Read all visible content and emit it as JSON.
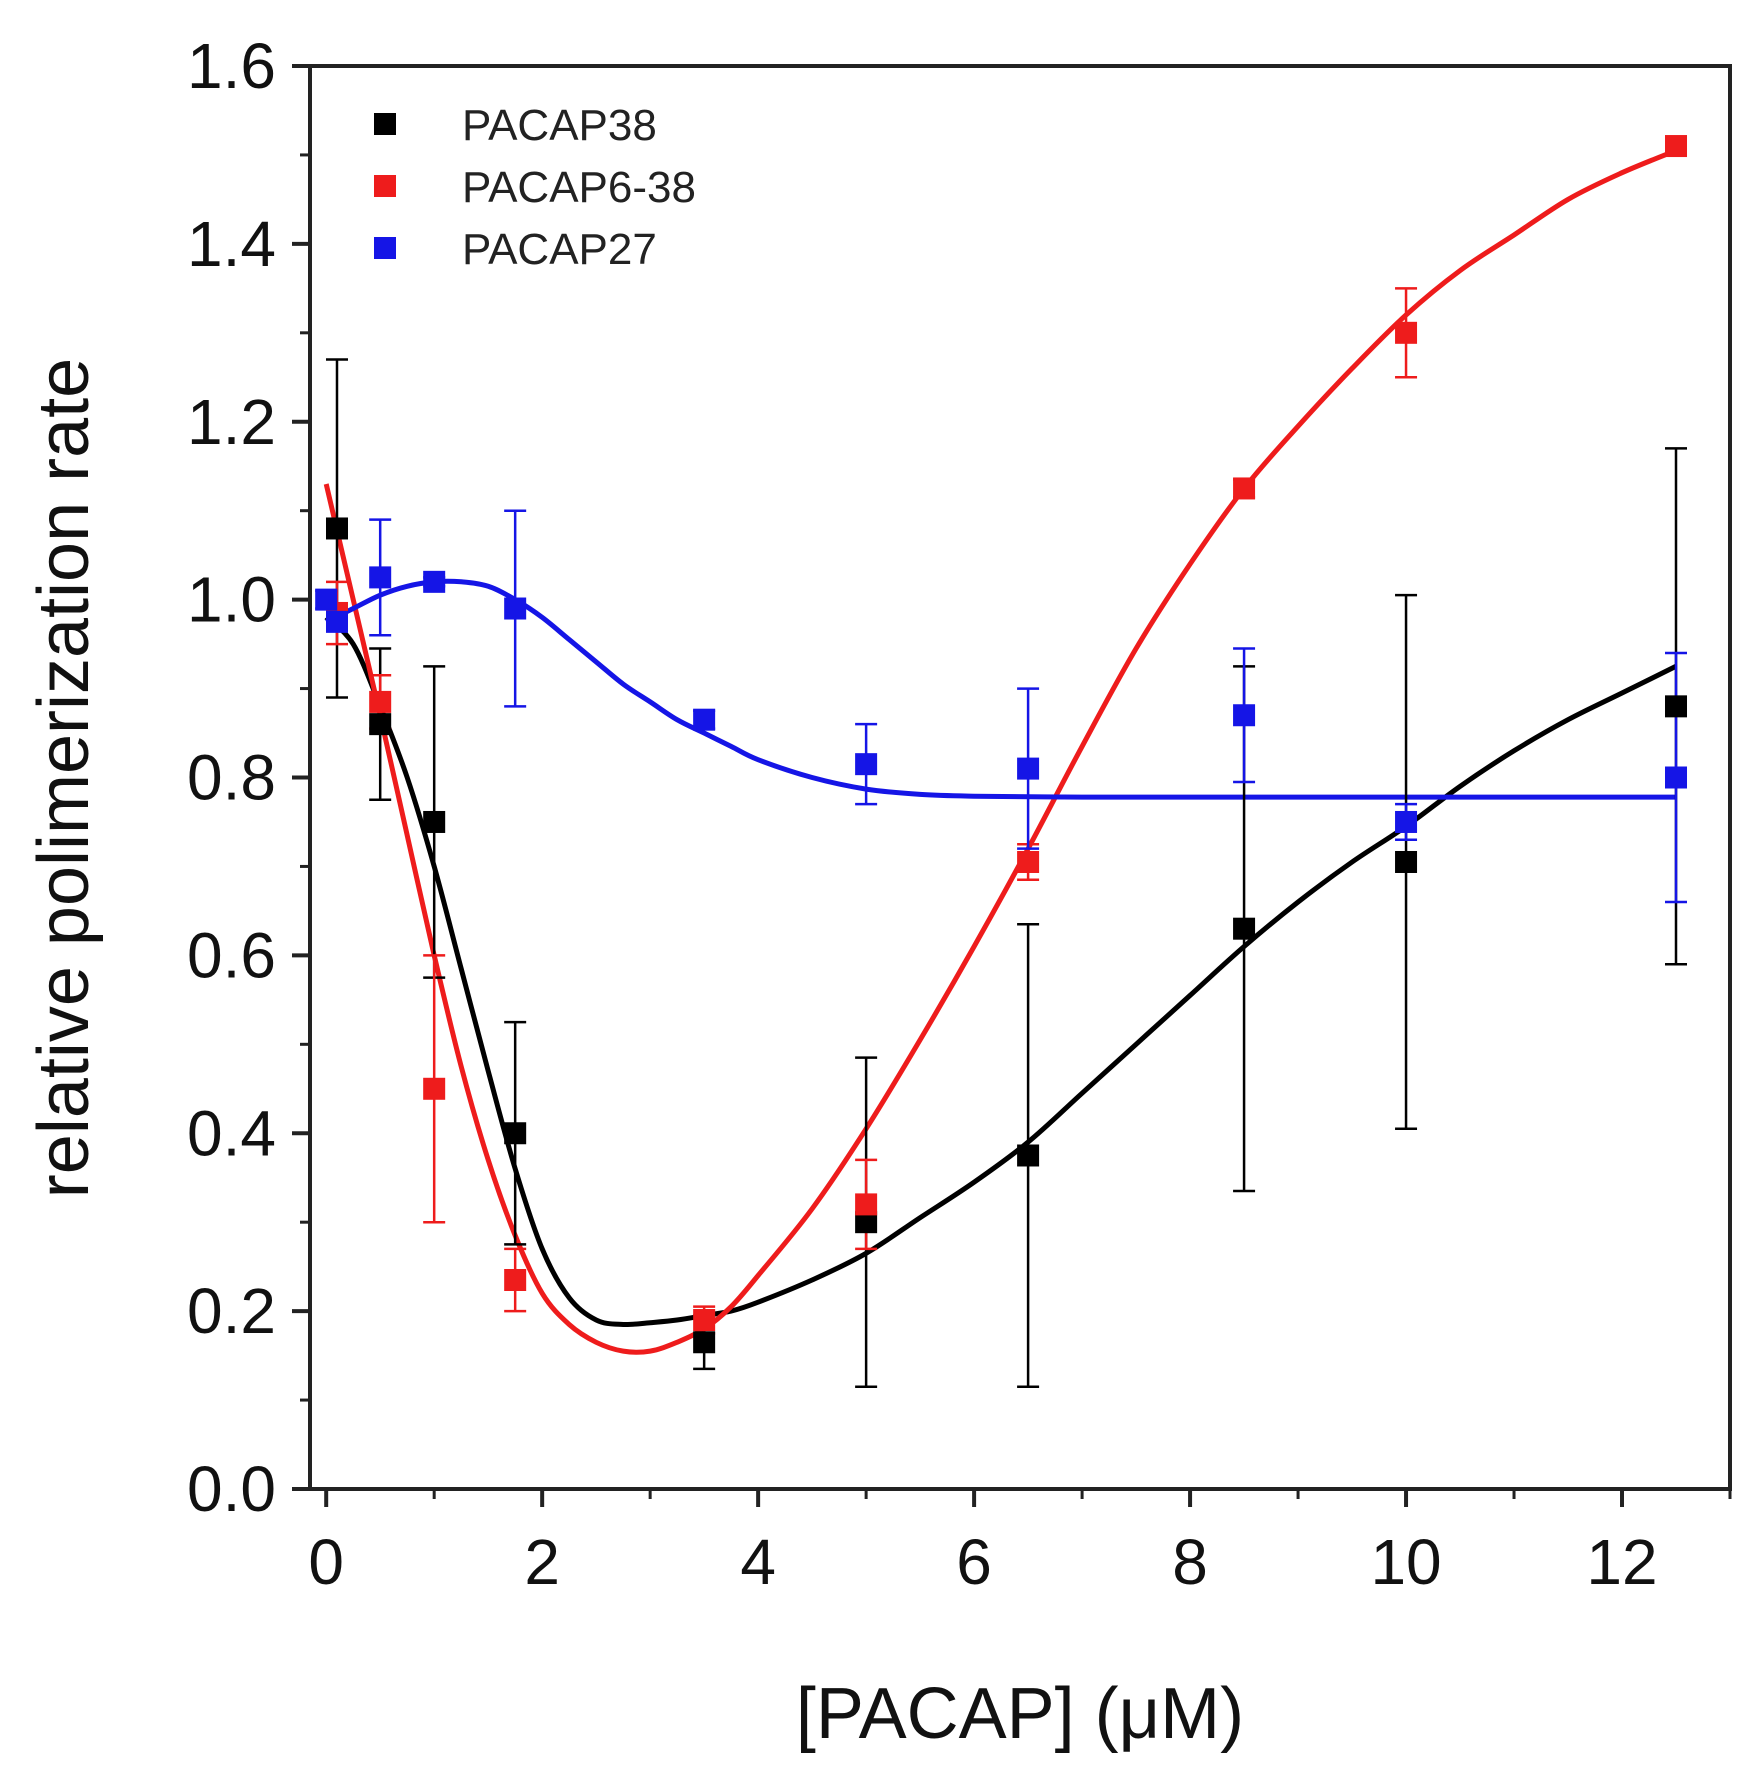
{
  "chart_data": {
    "type": "scatter",
    "title": "",
    "xlabel": "[PACAP] (μM)",
    "ylabel": "relative polimerization rate",
    "xlim": [
      -0.15,
      13
    ],
    "ylim": [
      0,
      1.6
    ],
    "xticks": [
      0,
      2,
      4,
      6,
      8,
      10,
      12
    ],
    "xtick_labels": [
      "0",
      "2",
      "4",
      "6",
      "8",
      "10",
      "12"
    ],
    "yticks": [
      0,
      0.2,
      0.4,
      0.6,
      0.8,
      1.0,
      1.2,
      1.4,
      1.6
    ],
    "ytick_labels": [
      "0.0",
      "0.2",
      "0.4",
      "0.6",
      "0.8",
      "1.0",
      "1.2",
      "1.4",
      "1.6"
    ],
    "legend_position": "top-left",
    "series": [
      {
        "name": "PACAP38",
        "color": "#000000",
        "x": [
          0.1,
          0.5,
          1.0,
          1.75,
          3.5,
          5.0,
          6.5,
          8.5,
          10.0,
          12.5
        ],
        "y": [
          1.08,
          0.86,
          0.75,
          0.4,
          0.165,
          0.3,
          0.375,
          0.63,
          0.705,
          0.88
        ],
        "yerr": [
          0.19,
          0.085,
          0.175,
          0.125,
          0.03,
          0.185,
          0.26,
          0.295,
          0.3,
          0.29
        ],
        "fit_x": [
          0.0,
          0.25,
          0.5,
          0.75,
          1.0,
          1.25,
          1.5,
          1.75,
          2.0,
          2.25,
          2.5,
          2.75,
          3.0,
          3.25,
          3.5,
          3.75,
          4.0,
          4.5,
          5.0,
          5.5,
          6.0,
          6.5,
          7.0,
          7.5,
          8.0,
          8.5,
          9.0,
          9.5,
          10.0,
          10.5,
          11.0,
          11.5,
          12.0,
          12.5
        ],
        "fit_y": [
          0.98,
          0.95,
          0.88,
          0.8,
          0.7,
          0.585,
          0.47,
          0.36,
          0.27,
          0.215,
          0.19,
          0.185,
          0.187,
          0.19,
          0.195,
          0.2,
          0.21,
          0.235,
          0.265,
          0.305,
          0.345,
          0.39,
          0.445,
          0.5,
          0.555,
          0.61,
          0.66,
          0.705,
          0.745,
          0.79,
          0.83,
          0.865,
          0.895,
          0.925
        ]
      },
      {
        "name": "PACAP6-38",
        "color": "#ee1c1c",
        "x": [
          0.1,
          0.5,
          1.0,
          1.75,
          3.5,
          5.0,
          6.5,
          8.5,
          10.0,
          12.5
        ],
        "y": [
          0.985,
          0.885,
          0.45,
          0.235,
          0.19,
          0.32,
          0.705,
          1.125,
          1.3,
          1.51
        ],
        "yerr": [
          0.035,
          0.03,
          0.15,
          0.035,
          0.015,
          0.05,
          0.02,
          0.01,
          0.05,
          0.01
        ],
        "fit_x": [
          0.0,
          0.25,
          0.5,
          0.75,
          1.0,
          1.25,
          1.5,
          1.75,
          2.0,
          2.25,
          2.5,
          2.75,
          3.0,
          3.25,
          3.5,
          3.75,
          4.0,
          4.5,
          5.0,
          5.5,
          6.0,
          6.5,
          7.0,
          7.5,
          8.0,
          8.5,
          9.0,
          9.5,
          10.0,
          10.5,
          11.0,
          11.5,
          12.0,
          12.5
        ],
        "fit_y": [
          1.13,
          1.0,
          0.87,
          0.735,
          0.6,
          0.475,
          0.37,
          0.285,
          0.22,
          0.185,
          0.165,
          0.155,
          0.155,
          0.165,
          0.18,
          0.205,
          0.24,
          0.315,
          0.405,
          0.505,
          0.61,
          0.72,
          0.835,
          0.945,
          1.04,
          1.125,
          1.195,
          1.26,
          1.32,
          1.37,
          1.41,
          1.45,
          1.48,
          1.505
        ]
      },
      {
        "name": "PACAP27",
        "color": "#1515e6",
        "x": [
          0.0,
          0.1,
          0.5,
          1.0,
          1.75,
          3.5,
          5.0,
          6.5,
          8.5,
          10.0,
          12.5
        ],
        "y": [
          1.0,
          0.975,
          1.025,
          1.02,
          0.99,
          0.865,
          0.815,
          0.81,
          0.87,
          0.75,
          0.8
        ],
        "yerr": [
          0.01,
          0.01,
          0.065,
          0.005,
          0.11,
          0.01,
          0.045,
          0.09,
          0.075,
          0.02,
          0.14
        ],
        "fit_x": [
          0.0,
          0.25,
          0.5,
          0.75,
          1.0,
          1.25,
          1.5,
          1.75,
          2.0,
          2.25,
          2.5,
          2.75,
          3.0,
          3.25,
          3.5,
          3.75,
          4.0,
          4.5,
          5.0,
          5.5,
          6.0,
          7.0,
          8.0,
          9.0,
          10.0,
          11.0,
          12.0,
          12.5
        ],
        "fit_y": [
          0.975,
          0.99,
          1.005,
          1.015,
          1.02,
          1.02,
          1.015,
          1.0,
          0.98,
          0.955,
          0.93,
          0.905,
          0.885,
          0.865,
          0.85,
          0.835,
          0.82,
          0.8,
          0.787,
          0.781,
          0.779,
          0.778,
          0.778,
          0.778,
          0.778,
          0.778,
          0.778,
          0.778
        ]
      }
    ]
  }
}
